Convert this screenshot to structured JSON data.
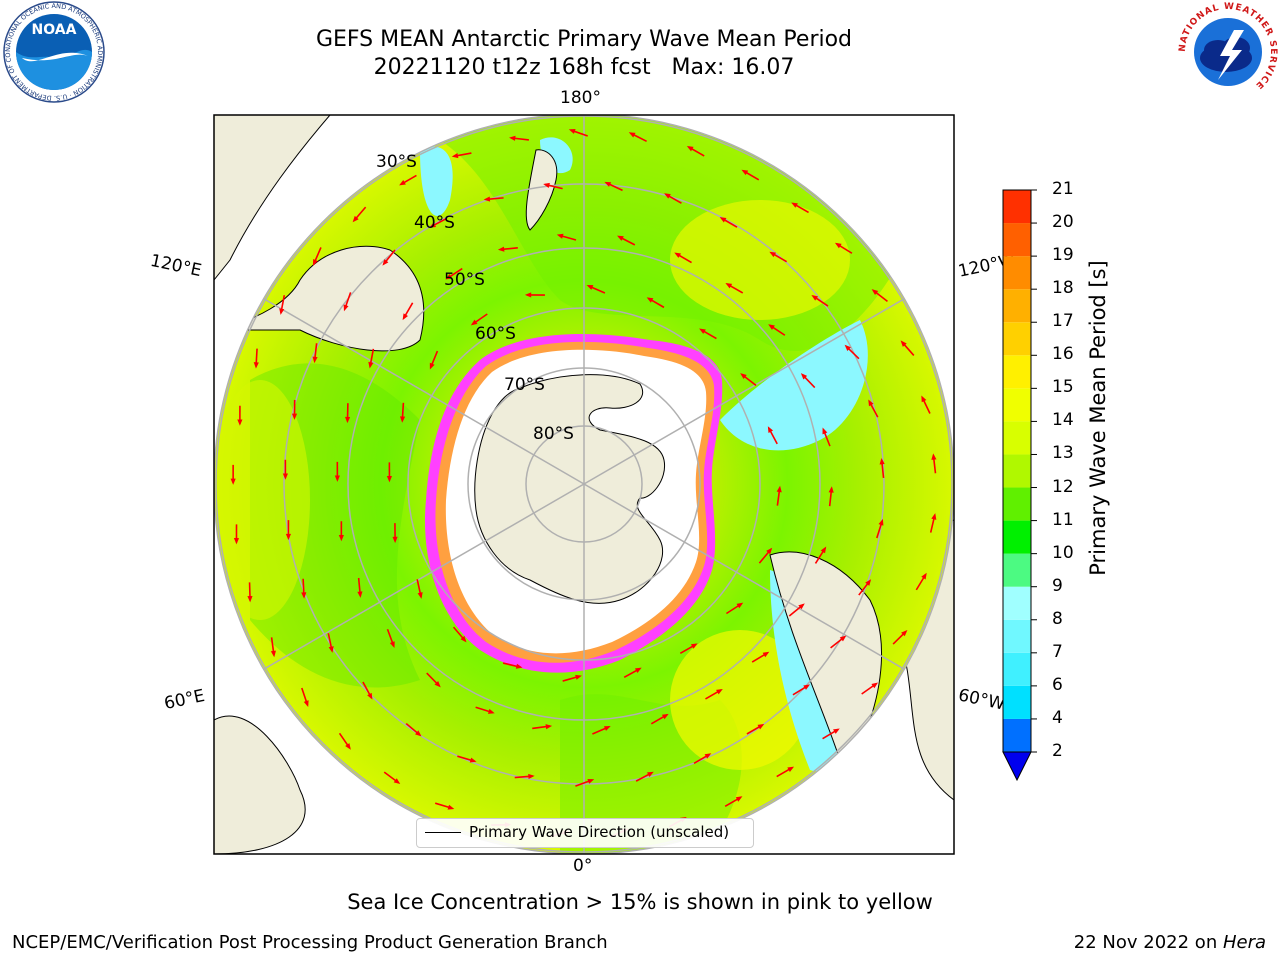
{
  "title": {
    "line1": "GEFS MEAN Antarctic Primary Wave Mean Period",
    "line2": "20221120 t12z 168h fcst   Max: 16.07"
  },
  "map": {
    "projection": "south-polar-stereographic",
    "longitude_labels": [
      "180°",
      "120°E",
      "120°W",
      "60°E",
      "60°W",
      "0°"
    ],
    "latitude_labels": [
      "30°S",
      "40°S",
      "50°S",
      "60°S",
      "70°S",
      "80°S"
    ],
    "legend_label": "Primary Wave Direction (unscaled)"
  },
  "colorbar": {
    "label": "Primary Wave Mean Period [s]",
    "ticks": [
      "2",
      "4",
      "6",
      "7",
      "8",
      "9",
      "10",
      "11",
      "12",
      "13",
      "14",
      "15",
      "16",
      "17",
      "18",
      "19",
      "20",
      "21"
    ],
    "colors": [
      "#0070ff",
      "#00e0ff",
      "#40f0ff",
      "#70f8ff",
      "#a0ffff",
      "#4cfa82",
      "#00f000",
      "#60f000",
      "#b0f800",
      "#d8ff00",
      "#f0ff00",
      "#fff000",
      "#ffd000",
      "#ffb000",
      "#ff8c00",
      "#ff6000",
      "#ff3000"
    ],
    "extend_color": "#0000ee"
  },
  "colors": {
    "land": "#efedda",
    "sea_ice": "#ffffff",
    "ice_edge_pink": "#ff40ff",
    "ice_edge_orange": "#ffa040",
    "arrow": "#ff0000",
    "grid": "#b0b0b0"
  },
  "footer": {
    "sea_ice_note": "Sea Ice Concentration > 15% is shown in pink to yellow",
    "credit": "NCEP/EMC/Verification Post Processing Product Generation Branch",
    "date_prefix": "22 Nov 2022 on ",
    "date_machine": "Hera"
  },
  "logos": {
    "left_text": "NOAA",
    "left_ring_text": "NATIONAL OCEANIC AND ATMOSPHERIC ADMINISTRATION · U.S. DEPARTMENT OF COMMERCE",
    "right_ring_text": "NATIONAL WEATHER SERVICE"
  }
}
